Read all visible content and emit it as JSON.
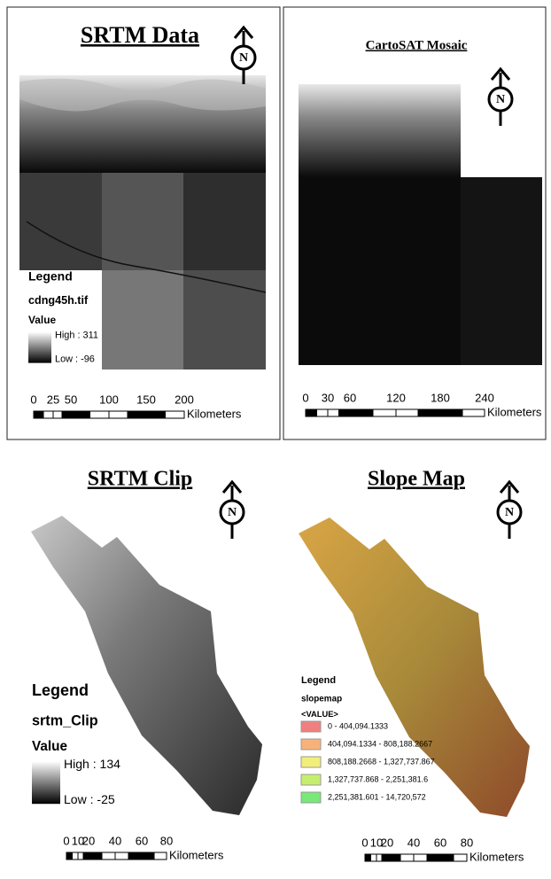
{
  "panels": [
    {
      "title": "SRTM Data",
      "north": "N",
      "legend": {
        "title": "Legend",
        "layer": "cdng45h.tif",
        "field": "Value",
        "high": "High : 311",
        "low": "Low : -96"
      },
      "scale": {
        "ticks": [
          "0",
          "25",
          "50",
          "100",
          "150",
          "200"
        ],
        "unit": "Kilometers"
      }
    },
    {
      "title": "CartoSAT Mosaic",
      "north": "N",
      "scale": {
        "ticks": [
          "0",
          "30",
          "60",
          "120",
          "180",
          "240"
        ],
        "unit": "Kilometers"
      }
    },
    {
      "title": "SRTM Clip",
      "north": "N",
      "legend": {
        "title": "Legend",
        "layer": "srtm_Clip",
        "field": "Value",
        "high": "High : 134",
        "low": "Low : -25"
      },
      "scale": {
        "ticks": [
          "0",
          "10",
          "20",
          "40",
          "60",
          "80"
        ],
        "unit": "Kilometers"
      }
    },
    {
      "title": "Slope Map",
      "north": "N",
      "legend": {
        "title": "Legend",
        "layer": "slopemap",
        "field": "<VALUE>",
        "classes": [
          {
            "label": "0 - 404,094.1333",
            "color": "#f08080"
          },
          {
            "label": "404,094.1334 - 808,188.2667",
            "color": "#f7b27a"
          },
          {
            "label": "808,188.2668 - 1,327,737.867",
            "color": "#f2ee7a"
          },
          {
            "label": "1,327,737.868 - 2,251,381.6",
            "color": "#c6ee6e"
          },
          {
            "label": "2,251,381.601 - 14,720,572",
            "color": "#78e878"
          }
        ]
      },
      "scale": {
        "ticks": [
          "0",
          "10",
          "20",
          "40",
          "60",
          "80"
        ],
        "unit": "Kilometers"
      }
    }
  ]
}
